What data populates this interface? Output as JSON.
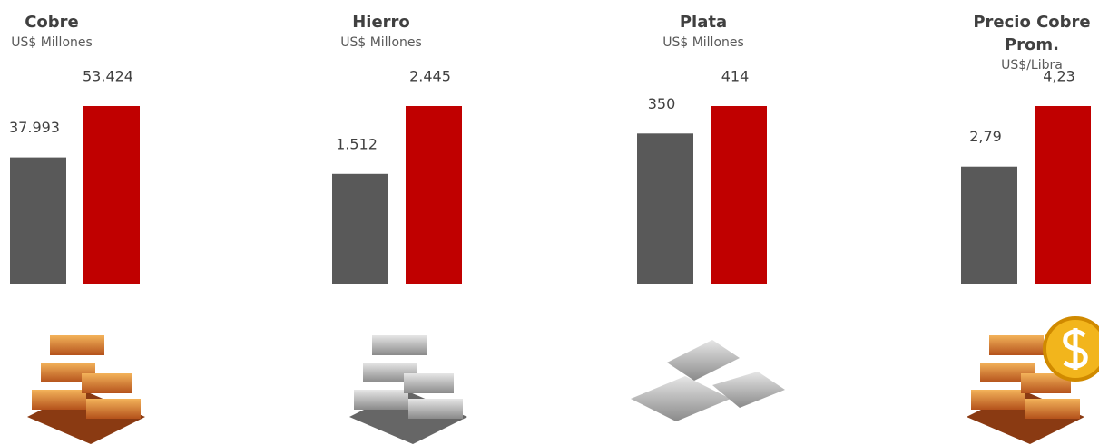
{
  "chart_data": [
    {
      "type": "bar",
      "title": "Cobre",
      "subtitle": "US$ Millones",
      "values": [
        37993,
        53424
      ],
      "value_labels": [
        "37.993",
        "53.424"
      ],
      "colors": [
        "#595959",
        "#c00000"
      ]
    },
    {
      "type": "bar",
      "title": "Hierro",
      "subtitle": "US$ Millones",
      "values": [
        1512,
        2445
      ],
      "value_labels": [
        "1.512",
        "2.445"
      ],
      "colors": [
        "#595959",
        "#c00000"
      ]
    },
    {
      "type": "bar",
      "title": "Plata",
      "subtitle": "US$ Millones",
      "values": [
        350,
        414
      ],
      "colors": [
        "#595959",
        "#c00000"
      ]
    },
    {
      "type": "bar",
      "title": "Precio Cobre Prom.",
      "subtitle": "US$/Libra",
      "values": [
        2.79,
        4.23
      ],
      "value_labels": [
        "2,79",
        "4,23"
      ],
      "colors": [
        "#595959",
        "#c00000"
      ]
    }
  ]
}
